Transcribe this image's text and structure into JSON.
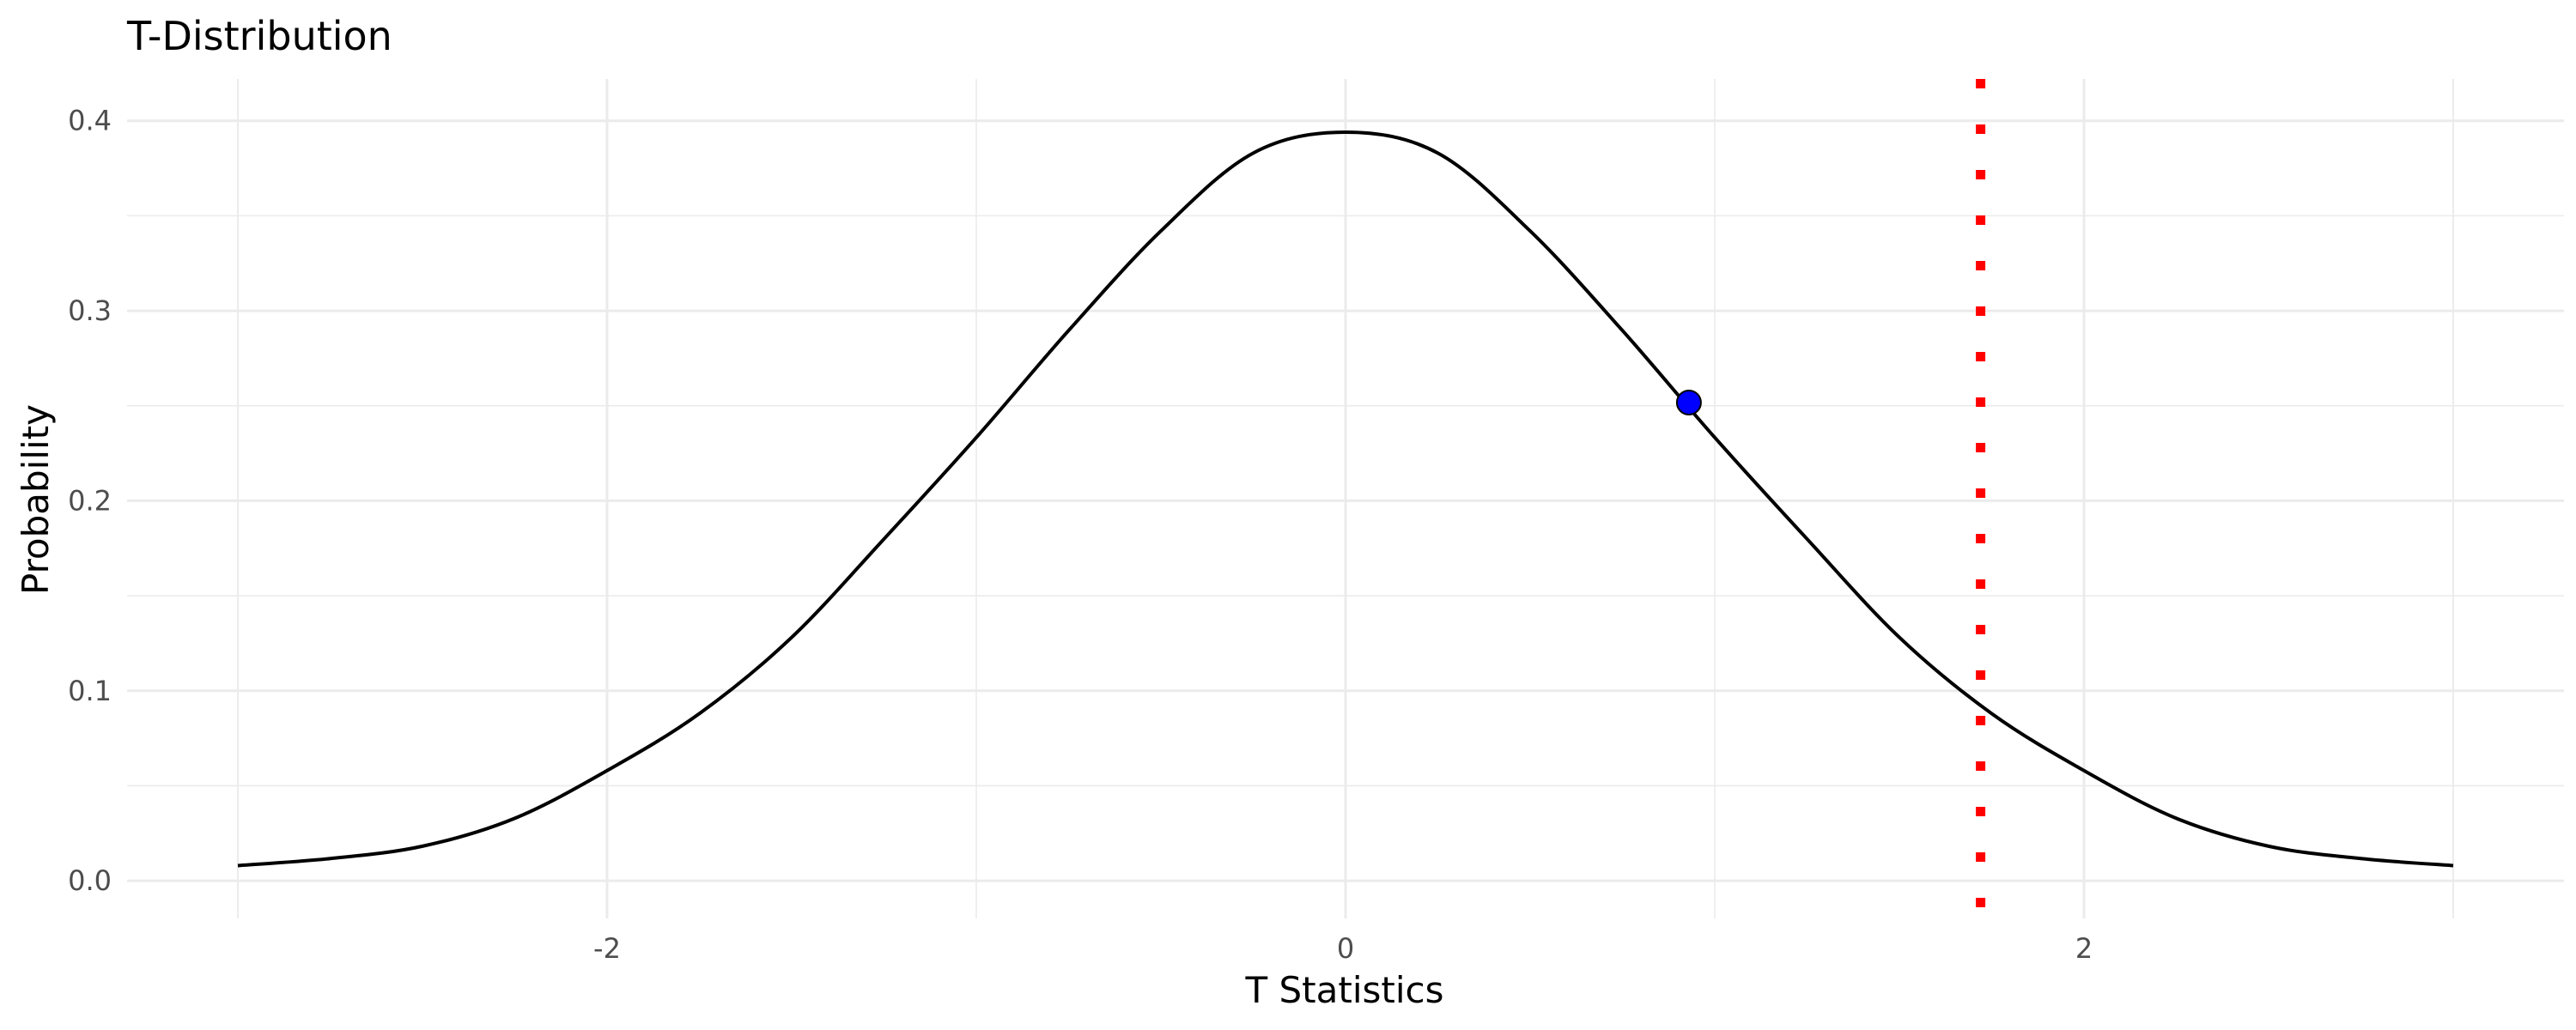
{
  "chart_data": {
    "type": "line",
    "title": "T-Distribution",
    "xlabel": "T Statistics",
    "ylabel": "Probability",
    "xlim": [
      -3,
      3
    ],
    "ylim": [
      0,
      0.4
    ],
    "x_ticks": [
      -2,
      0,
      2
    ],
    "x_tick_labels": [
      "-2",
      "0",
      "2"
    ],
    "y_ticks": [
      0.0,
      0.1,
      0.2,
      0.3,
      0.4
    ],
    "y_tick_labels": [
      "0.0",
      "0.1",
      "0.2",
      "0.3",
      "0.4"
    ],
    "grid": true,
    "series": [
      {
        "x": [
          -3.0,
          -2.75,
          -2.5,
          -2.25,
          -2.0,
          -1.75,
          -1.5,
          -1.25,
          -1.0,
          -0.75,
          -0.5,
          -0.25,
          0.0,
          0.25,
          0.5,
          0.75,
          1.0,
          1.25,
          1.5,
          1.75,
          2.0,
          2.25,
          2.5,
          2.75,
          3.0
        ],
        "y": [
          0.008,
          0.0117,
          0.0182,
          0.0329,
          0.058,
          0.088,
          0.1281,
          0.1799,
          0.2333,
          0.2896,
          0.342,
          0.383,
          0.394,
          0.383,
          0.342,
          0.2896,
          0.2333,
          0.1799,
          0.1281,
          0.088,
          0.058,
          0.0329,
          0.0182,
          0.0117,
          0.008
        ],
        "color": "#000000"
      }
    ],
    "point": {
      "x": 0.93,
      "y": 0.2517,
      "color": "#0000ff"
    },
    "critical_line": {
      "x": 1.72,
      "color": "#ff0000",
      "style": "dotted"
    }
  }
}
